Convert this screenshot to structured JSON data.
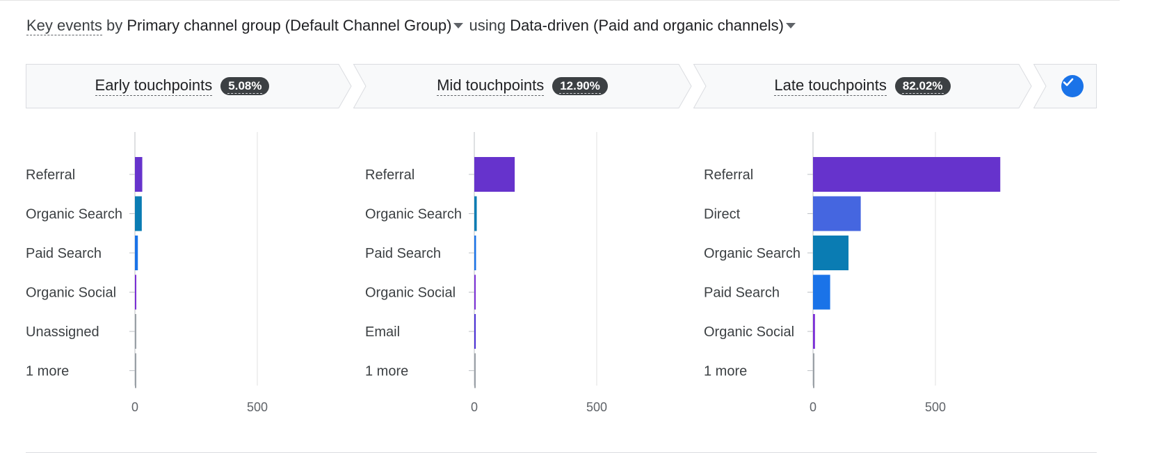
{
  "header": {
    "metric": "Key events",
    "by": "by",
    "dimension": "Primary channel group (Default Channel Group)",
    "using": "using",
    "model": "Data-driven (Paid and organic channels)"
  },
  "steps": [
    {
      "label": "Early touchpoints",
      "value": "5.08%"
    },
    {
      "label": "Mid touchpoints",
      "value": "12.90%"
    },
    {
      "label": "Late touchpoints",
      "value": "82.02%"
    }
  ],
  "colors": {
    "Referral": "#6633cc",
    "Organic Search": "#0a7cb3",
    "Paid Search": "#1a73e8",
    "Organic Social": "#7b2fd6",
    "Direct": "#4566e0",
    "Email": "#4b2fd6",
    "Unassigned": "#9aa0a6",
    "1 more": "#9aa0a6"
  },
  "chart_data": [
    {
      "type": "bar",
      "orientation": "horizontal",
      "categories": [
        "Referral",
        "Organic Search",
        "Paid Search",
        "Organic Social",
        "Unassigned",
        "1 more"
      ],
      "values": [
        30,
        28,
        12,
        4,
        2,
        1
      ],
      "xticks": [
        0,
        500
      ],
      "xlim": [
        0,
        1000
      ],
      "grid": true
    },
    {
      "type": "bar",
      "orientation": "horizontal",
      "categories": [
        "Referral",
        "Organic Search",
        "Paid Search",
        "Organic Social",
        "Email",
        "1 more"
      ],
      "values": [
        165,
        10,
        7,
        5,
        4,
        2
      ],
      "xticks": [
        0,
        500
      ],
      "xlim": [
        0,
        1000
      ],
      "grid": true
    },
    {
      "type": "bar",
      "orientation": "horizontal",
      "categories": [
        "Referral",
        "Direct",
        "Organic Search",
        "Paid Search",
        "Organic Social",
        "1 more"
      ],
      "values": [
        765,
        195,
        145,
        70,
        8,
        2
      ],
      "xticks": [
        0,
        500
      ],
      "xlim": [
        0,
        1000
      ],
      "grid": true
    }
  ]
}
